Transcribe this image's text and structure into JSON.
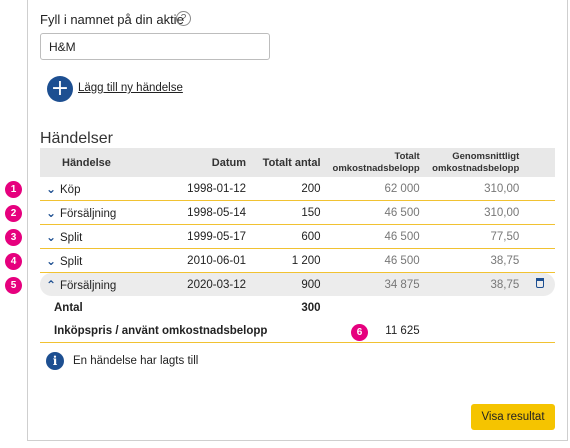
{
  "form": {
    "label": "Fyll i namnet på din aktie",
    "help_glyph": "?",
    "input_value": "H&M"
  },
  "add_event": {
    "icon_glyph": "+",
    "label": "Lägg till ny händelse"
  },
  "events_section": {
    "title": "Händelser",
    "columns": {
      "event": "Händelse",
      "date": "Datum",
      "total_qty": "Totalt antal",
      "total_cost": [
        "Totalt",
        "omkostnadsbelopp"
      ],
      "avg_cost": [
        "Genomsnittligt",
        "omkostnadsbelopp"
      ]
    },
    "rows": [
      {
        "badge": "1",
        "chevron": "⌄",
        "event": "Köp",
        "date": "1998-01-12",
        "qty": "200",
        "total": "62 000",
        "avg": "310,00"
      },
      {
        "badge": "2",
        "chevron": "⌄",
        "event": "Försäljning",
        "date": "1998-05-14",
        "qty": "150",
        "total": "46 500",
        "avg": "310,00"
      },
      {
        "badge": "3",
        "chevron": "⌄",
        "event": "Split",
        "date": "1999-05-17",
        "qty": "600",
        "total": "46 500",
        "avg": "77,50"
      },
      {
        "badge": "4",
        "chevron": "⌄",
        "event": "Split",
        "date": "2010-06-01",
        "qty": "1 200",
        "total": "46 500",
        "avg": "38,75"
      },
      {
        "badge": "5",
        "chevron": "⌃",
        "event": "Försäljning",
        "date": "2020-03-12",
        "qty": "900",
        "total": "34 875",
        "avg": "38,75"
      }
    ],
    "detail": {
      "quantity_label": "Antal",
      "quantity_value": "300",
      "cost_label": "Inköpspris / använt omkostnadsbelopp",
      "cost_badge": "6",
      "cost_value": "11 625"
    }
  },
  "info": {
    "icon_glyph": "i",
    "message": "En händelse har lagts till"
  },
  "actions": {
    "show_result": "Visa resultat"
  },
  "colors": {
    "primary": "#1d4f91",
    "badge": "#e6007e",
    "accent_line": "#f1c232",
    "button": "#f5c400"
  }
}
